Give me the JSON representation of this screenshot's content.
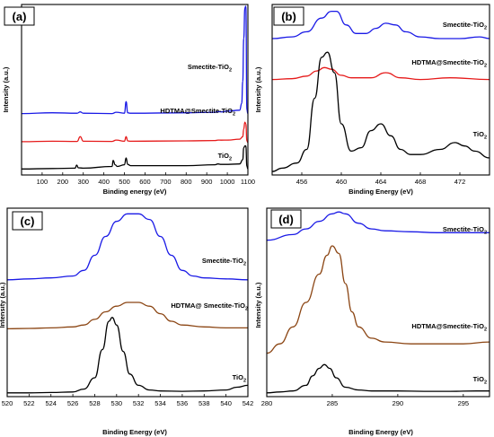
{
  "colors": {
    "blue": "#1a1ae6",
    "red": "#e61a1a",
    "brown": "#8b4513",
    "black": "#000000"
  },
  "chart_data": [
    {
      "panel": "(a)",
      "type": "line",
      "xlabel": "Binding energy (eV)",
      "ylabel": "Intensity (a.u.)",
      "xlim": [
        0,
        1100
      ],
      "xticks": [
        100,
        200,
        300,
        400,
        500,
        600,
        700,
        800,
        900,
        1000,
        1100
      ],
      "series": [
        {
          "name": "Smectite-TiO2",
          "label_text": "Smectite-TiO",
          "label_sub": "2",
          "color": "#1a1ae6",
          "x": [
            0,
            150,
            270,
            285,
            300,
            440,
            460,
            500,
            508,
            516,
            530,
            800,
            940,
            955,
            970,
            1000,
            1060,
            1070,
            1075,
            1080,
            1085,
            1090,
            1095,
            1100
          ],
          "y": [
            0.36,
            0.365,
            0.362,
            0.37,
            0.362,
            0.36,
            0.368,
            0.362,
            0.43,
            0.365,
            0.362,
            0.365,
            0.368,
            0.372,
            0.37,
            0.375,
            0.38,
            0.42,
            0.55,
            0.8,
            0.98,
            0.99,
            0.38,
            0.36
          ]
        },
        {
          "name": "HDTMA@Smectite-TiO2",
          "label_text": "HDTMA@Smectite-TiO",
          "label_sub": "2",
          "color": "#e61a1a",
          "x": [
            0,
            150,
            270,
            285,
            300,
            440,
            460,
            500,
            508,
            516,
            530,
            800,
            940,
            955,
            970,
            1000,
            1060,
            1075,
            1080,
            1085,
            1090,
            1095,
            1100
          ],
          "y": [
            0.195,
            0.198,
            0.197,
            0.225,
            0.198,
            0.197,
            0.205,
            0.198,
            0.225,
            0.2,
            0.198,
            0.2,
            0.202,
            0.205,
            0.204,
            0.205,
            0.21,
            0.225,
            0.27,
            0.31,
            0.3,
            0.2,
            0.19
          ]
        },
        {
          "name": "TiO2",
          "label_text": "TiO",
          "label_sub": "2",
          "color": "#000000",
          "x": [
            0,
            150,
            260,
            268,
            276,
            300,
            440,
            445,
            455,
            465,
            500,
            508,
            516,
            530,
            800,
            940,
            955,
            970,
            1000,
            1060,
            1075,
            1080,
            1085,
            1090,
            1095,
            1100
          ],
          "y": [
            0.035,
            0.038,
            0.04,
            0.058,
            0.042,
            0.04,
            0.05,
            0.085,
            0.06,
            0.05,
            0.06,
            0.1,
            0.062,
            0.055,
            0.055,
            0.06,
            0.065,
            0.062,
            0.062,
            0.065,
            0.09,
            0.16,
            0.17,
            0.17,
            0.05,
            0.035
          ]
        }
      ]
    },
    {
      "panel": "(b)",
      "type": "line",
      "xlabel": "Binding Energy (eV)",
      "ylabel": "Intensity (a.u.)",
      "xlim": [
        453,
        475
      ],
      "xticks": [
        456,
        460,
        464,
        468,
        472
      ],
      "series": [
        {
          "name": "Smectite-TiO2",
          "label_text": "Smectite-TiO",
          "label_sub": "2",
          "color": "#1a1ae6",
          "x": [
            453,
            455,
            456.5,
            458,
            459,
            459.5,
            460.5,
            461.5,
            462.5,
            463.5,
            464.5,
            465.5,
            466.5,
            468,
            470,
            472,
            474,
            475
          ],
          "y": [
            0.8,
            0.81,
            0.84,
            0.92,
            0.96,
            0.96,
            0.88,
            0.83,
            0.83,
            0.86,
            0.89,
            0.88,
            0.84,
            0.81,
            0.8,
            0.8,
            0.81,
            0.8
          ]
        },
        {
          "name": "HDTMA@Smectite-TiO2",
          "label_text": "HDTMA@Smectite-TiO",
          "label_sub": "2",
          "color": "#e61a1a",
          "x": [
            453,
            455,
            456.5,
            457.5,
            458.3,
            459,
            460,
            461,
            463,
            464.5,
            466,
            468,
            471,
            475
          ],
          "y": [
            0.56,
            0.565,
            0.58,
            0.61,
            0.63,
            0.62,
            0.585,
            0.57,
            0.57,
            0.6,
            0.57,
            0.56,
            0.57,
            0.56
          ]
        },
        {
          "name": "TiO2",
          "label_text": "TiO",
          "label_sub": "2",
          "color": "#000000",
          "x": [
            453,
            454,
            455.5,
            456.5,
            457.3,
            458,
            458.6,
            459.3,
            460,
            461,
            462,
            463,
            464,
            465,
            466,
            467,
            468,
            470,
            471.5,
            472.5,
            473.5,
            475
          ],
          "y": [
            0.02,
            0.04,
            0.07,
            0.15,
            0.45,
            0.69,
            0.72,
            0.6,
            0.3,
            0.14,
            0.16,
            0.26,
            0.3,
            0.23,
            0.15,
            0.12,
            0.12,
            0.15,
            0.19,
            0.17,
            0.14,
            0.1
          ]
        }
      ]
    },
    {
      "panel": "(c)",
      "type": "line",
      "xlabel": "Binding Energy (eV)",
      "ylabel": "Intensity (a.u.)",
      "xlim": [
        520,
        542
      ],
      "xticks": [
        520,
        522,
        524,
        526,
        528,
        530,
        532,
        534,
        536,
        538,
        540,
        542
      ],
      "series": [
        {
          "name": "Smectite-TiO2",
          "label_text": "Smectite-TiO",
          "label_sub": "2",
          "color": "#1a1ae6",
          "x": [
            520,
            522,
            524,
            526,
            527,
            528,
            529,
            530,
            531,
            532,
            533,
            534,
            535,
            536,
            537,
            538,
            540,
            542
          ],
          "y": [
            0.62,
            0.625,
            0.63,
            0.64,
            0.67,
            0.75,
            0.85,
            0.93,
            0.97,
            0.97,
            0.94,
            0.85,
            0.75,
            0.67,
            0.64,
            0.63,
            0.625,
            0.62
          ]
        },
        {
          "name": "HDTMA@ Smectite-TiO2",
          "label_text": "HDTMA@ Smectite-TiO",
          "label_sub": "2",
          "color": "#8b4513",
          "x": [
            520,
            522,
            524,
            526,
            527,
            528,
            529,
            530,
            531,
            532,
            533,
            534,
            535,
            536,
            538,
            540,
            542
          ],
          "y": [
            0.36,
            0.362,
            0.365,
            0.37,
            0.38,
            0.41,
            0.45,
            0.48,
            0.5,
            0.5,
            0.48,
            0.44,
            0.4,
            0.38,
            0.37,
            0.365,
            0.365
          ]
        },
        {
          "name": "TiO2",
          "label_text": "TiO",
          "label_sub": "2",
          "color": "#000000",
          "x": [
            520,
            522,
            524,
            526,
            527,
            528,
            528.7,
            529.3,
            529.6,
            530,
            530.6,
            531.2,
            532,
            533,
            534,
            536,
            538,
            540,
            541,
            542
          ],
          "y": [
            0.02,
            0.02,
            0.022,
            0.025,
            0.04,
            0.1,
            0.25,
            0.4,
            0.42,
            0.38,
            0.24,
            0.12,
            0.06,
            0.035,
            0.03,
            0.028,
            0.03,
            0.035,
            0.05,
            0.06
          ]
        }
      ]
    },
    {
      "panel": "(d)",
      "type": "line",
      "xlabel": "Binding Energy (eV)",
      "ylabel": "Intensity (a.u.)",
      "xlim": [
        280,
        297
      ],
      "xticks": [
        280,
        285,
        290,
        295
      ],
      "series": [
        {
          "name": "Smectite-TiO2",
          "label_text": "Smectite-TiO",
          "label_sub": "2",
          "color": "#1a1ae6",
          "x": [
            280,
            282,
            283,
            284,
            285,
            285.5,
            286,
            287,
            288,
            289,
            291,
            293,
            295,
            297
          ],
          "y": [
            0.83,
            0.86,
            0.89,
            0.93,
            0.97,
            0.98,
            0.97,
            0.92,
            0.89,
            0.88,
            0.875,
            0.87,
            0.87,
            0.87
          ]
        },
        {
          "name": "HDTMA@Smectite-TiO2",
          "label_text": "HDTMA@Smectite-TiO",
          "label_sub": "2",
          "color": "#8b4513",
          "x": [
            280,
            281,
            282,
            283,
            284,
            284.6,
            285,
            285.5,
            286,
            286.5,
            287,
            288,
            289,
            291,
            293,
            295,
            297
          ],
          "y": [
            0.23,
            0.28,
            0.37,
            0.5,
            0.65,
            0.75,
            0.8,
            0.76,
            0.6,
            0.45,
            0.37,
            0.31,
            0.29,
            0.28,
            0.28,
            0.28,
            0.29
          ]
        },
        {
          "name": "TiO2",
          "label_text": "TiO",
          "label_sub": "2",
          "color": "#000000",
          "x": [
            280,
            281,
            282,
            283,
            283.5,
            284,
            284.4,
            284.8,
            285.3,
            286,
            287,
            288,
            290,
            292,
            294,
            296,
            297
          ],
          "y": [
            0.02,
            0.025,
            0.03,
            0.06,
            0.11,
            0.15,
            0.17,
            0.15,
            0.1,
            0.05,
            0.035,
            0.03,
            0.03,
            0.028,
            0.028,
            0.03,
            0.03
          ]
        }
      ]
    }
  ]
}
